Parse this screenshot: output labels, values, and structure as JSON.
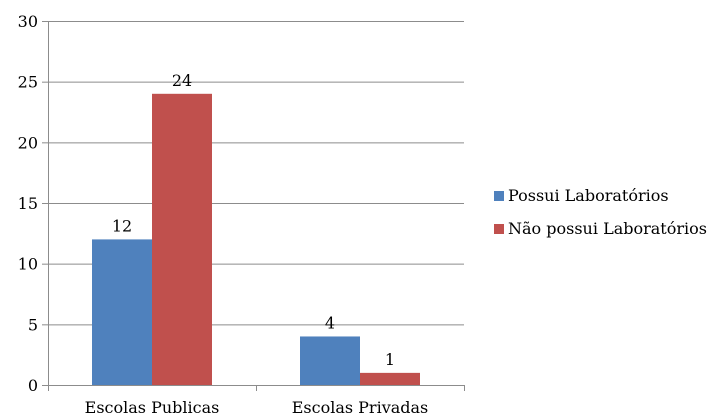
{
  "chart_data": {
    "type": "bar",
    "categories": [
      "Escolas Publicas",
      "Escolas Privadas"
    ],
    "series": [
      {
        "name": "Possui Laboratórios",
        "values": [
          12,
          4
        ],
        "color": "#4F81BD"
      },
      {
        "name": "Não possui Laboratórios",
        "values": [
          24,
          1
        ],
        "color": "#C0504D"
      }
    ],
    "ylim": [
      0,
      30
    ],
    "yticks": [
      0,
      5,
      10,
      15,
      20,
      25,
      30
    ],
    "grid": true,
    "legend_position": "right",
    "data_labels": true
  }
}
